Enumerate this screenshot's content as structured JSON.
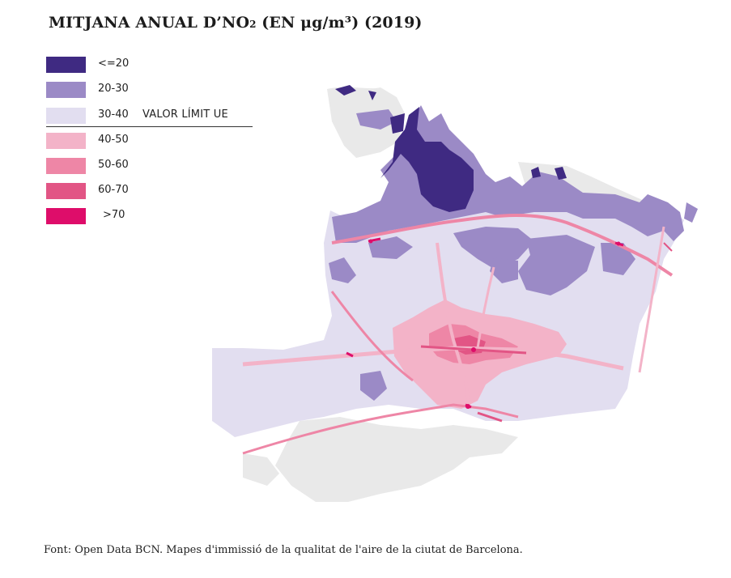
{
  "title": {
    "main": "MITJANA ANUAL D’NO",
    "sub": "2",
    "rest": " (EN μg/m³) (2019)"
  },
  "legend": {
    "items": [
      {
        "label": "<=20",
        "color": "#3f2a82"
      },
      {
        "label": "20-30",
        "color": "#9b8ac6"
      },
      {
        "label": "30-40",
        "color": "#e2def0"
      },
      {
        "label": "40-50",
        "color": "#f3b3c8"
      },
      {
        "label": "50-60",
        "color": "#ee86a6"
      },
      {
        "label": "60-70",
        "color": "#e25585"
      },
      {
        "label": ">70",
        "color": "#de0d6a"
      }
    ],
    "limit_label": "VALOR LÍMIT UE"
  },
  "map": {
    "land_color": "#e9e9e9",
    "area": "Barcelona"
  },
  "source": "Font: Open Data BCN. Mapes d'immissió de la qualitat de l'aire de la ciutat de Barcelona."
}
